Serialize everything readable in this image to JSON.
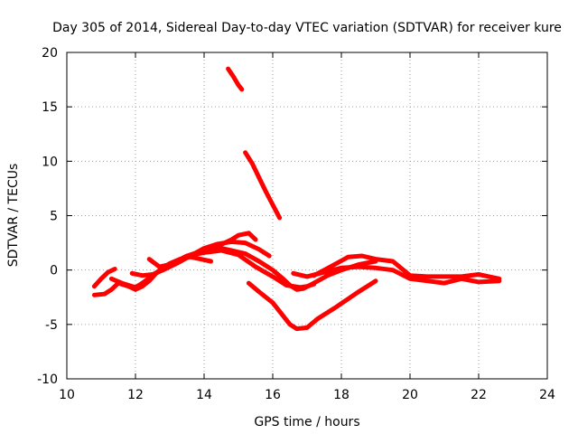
{
  "chart_data": {
    "type": "line",
    "title": "Day 305 of 2014, Sidereal Day-to-day VTEC variation (SDTVAR) for receiver kure",
    "xlabel": "GPS time / hours",
    "ylabel": "SDTVAR / TECUs",
    "xlim": [
      10,
      24
    ],
    "ylim": [
      -10,
      20
    ],
    "xticks": [
      10,
      12,
      14,
      16,
      18,
      20,
      22,
      24
    ],
    "yticks": [
      -10,
      -5,
      0,
      5,
      10,
      15,
      20
    ],
    "grid": true,
    "series_color": "#ff0000",
    "series": [
      {
        "name": "track-1",
        "x": [
          10.8,
          11.0,
          11.2,
          11.4
        ],
        "y": [
          -1.5,
          -0.8,
          -0.2,
          0.1
        ]
      },
      {
        "name": "track-2",
        "x": [
          10.8,
          11.1,
          11.3,
          11.5,
          11.8,
          12.0,
          12.2,
          12.4,
          12.6,
          13.0,
          13.5,
          14.0,
          14.5,
          14.8,
          15.2,
          15.6,
          16.0,
          16.3,
          16.5,
          16.7,
          16.9,
          17.2,
          17.6,
          18.0,
          18.5,
          19.0
        ],
        "y": [
          -2.3,
          -2.2,
          -1.8,
          -1.2,
          -1.5,
          -1.8,
          -1.5,
          -1.0,
          -0.3,
          0.5,
          1.2,
          1.8,
          2.0,
          1.8,
          1.5,
          0.8,
          0.0,
          -0.8,
          -1.4,
          -1.8,
          -1.7,
          -1.2,
          -0.5,
          0.0,
          0.5,
          0.8
        ]
      },
      {
        "name": "track-3",
        "x": [
          11.3,
          11.6,
          12.0,
          12.2,
          12.5,
          12.8,
          13.2,
          13.6,
          14.0,
          14.4,
          14.8,
          15.0,
          15.3,
          15.5
        ],
        "y": [
          -0.8,
          -1.2,
          -1.6,
          -1.2,
          -0.5,
          0.2,
          0.8,
          1.4,
          1.8,
          2.2,
          2.8,
          3.2,
          3.4,
          2.8
        ]
      },
      {
        "name": "track-4",
        "x": [
          11.9,
          12.2,
          12.5,
          12.8,
          13.2,
          13.6,
          14.0,
          14.4,
          14.8,
          15.2,
          15.6,
          15.9
        ],
        "y": [
          -0.3,
          -0.5,
          -0.4,
          0.0,
          0.6,
          1.3,
          2.0,
          2.4,
          2.6,
          2.5,
          1.9,
          1.3
        ]
      },
      {
        "name": "track-5",
        "x": [
          12.4,
          12.7,
          13.0,
          13.5,
          14.0,
          14.5,
          15.0,
          15.5,
          16.0,
          16.4,
          16.8,
          17.0,
          17.2
        ],
        "y": [
          1.0,
          0.3,
          0.5,
          1.3,
          1.6,
          1.8,
          1.4,
          0.3,
          -0.6,
          -1.4,
          -1.6,
          -1.5,
          -1.3
        ]
      },
      {
        "name": "track-6",
        "x": [
          12.6,
          12.8,
          13.0,
          13.3,
          13.6,
          13.9,
          14.2
        ],
        "y": [
          -0.3,
          0.2,
          0.6,
          1.0,
          1.2,
          1.0,
          0.8
        ]
      },
      {
        "name": "track-7",
        "x": [
          15.3,
          15.6,
          16.0,
          16.3,
          16.5,
          16.7,
          17.0,
          17.3,
          17.8,
          18.5,
          19.0
        ],
        "y": [
          -1.2,
          -2.0,
          -3.0,
          -4.2,
          -5.0,
          -5.4,
          -5.3,
          -4.5,
          -3.5,
          -2.0,
          -1.0
        ]
      },
      {
        "name": "track-8",
        "x": [
          17.2,
          17.5,
          17.8,
          18.2,
          18.6,
          19.0,
          19.5,
          20.0,
          20.5,
          21.0,
          21.5,
          22.0,
          22.3,
          22.6
        ],
        "y": [
          -0.5,
          0.0,
          0.5,
          1.2,
          1.3,
          1.0,
          0.8,
          -0.5,
          -0.6,
          -0.6,
          -0.6,
          -0.4,
          -0.6,
          -0.8
        ]
      },
      {
        "name": "track-9",
        "x": [
          16.6,
          17.0,
          17.5,
          18.0,
          18.5,
          19.0,
          19.5,
          20.0,
          20.5,
          21.0,
          21.5,
          22.0,
          22.6
        ],
        "y": [
          -0.3,
          -0.6,
          -0.2,
          0.2,
          0.3,
          0.2,
          0.0,
          -0.8,
          -1.0,
          -1.2,
          -0.8,
          -1.1,
          -1.0
        ]
      },
      {
        "name": "track-10",
        "x": [
          14.7,
          14.85,
          15.0,
          15.1
        ],
        "y": [
          18.5,
          17.8,
          17.0,
          16.6
        ]
      },
      {
        "name": "track-11",
        "x": [
          15.2,
          15.4,
          15.6,
          15.8,
          16.0,
          16.2
        ],
        "y": [
          10.8,
          9.8,
          8.5,
          7.2,
          6.0,
          4.8
        ]
      }
    ]
  }
}
